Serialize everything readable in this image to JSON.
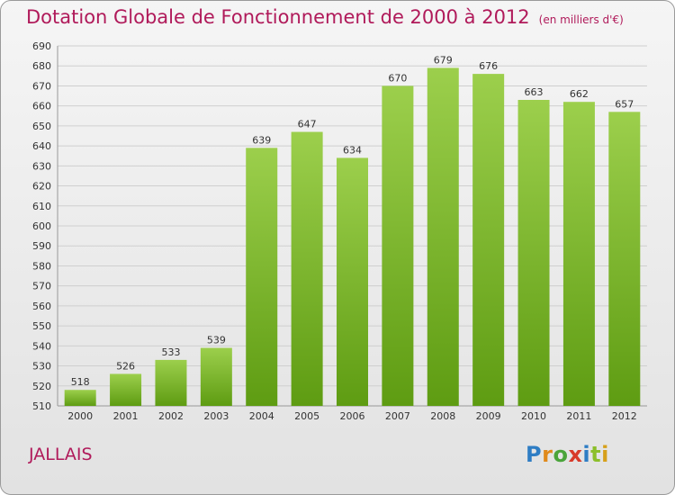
{
  "title": "Dotation Globale de Fonctionnement de 2000 à 2012",
  "unit": "(en milliers d'€)",
  "commune": "JALLAIS",
  "logo": {
    "p": "P",
    "r": "r",
    "o": "o",
    "x": "x",
    "i1": "i",
    "t": "t",
    "i2": "i"
  },
  "colors": {
    "bar_top": "#9ccf4c",
    "bar_bottom": "#5e9c12",
    "title": "#b01a5a"
  },
  "chart_data": {
    "type": "bar",
    "categories": [
      "2000",
      "2001",
      "2002",
      "2003",
      "2004",
      "2005",
      "2006",
      "2007",
      "2008",
      "2009",
      "2010",
      "2011",
      "2012"
    ],
    "values": [
      518,
      526,
      533,
      539,
      639,
      647,
      634,
      670,
      679,
      676,
      663,
      662,
      657
    ],
    "title": "Dotation Globale de Fonctionnement de 2000 à 2012",
    "ylim": [
      510,
      690
    ],
    "yticks": [
      510,
      520,
      530,
      540,
      550,
      560,
      570,
      580,
      590,
      600,
      610,
      620,
      630,
      640,
      650,
      660,
      670,
      680,
      690
    ],
    "grid": true,
    "legend": "none"
  }
}
